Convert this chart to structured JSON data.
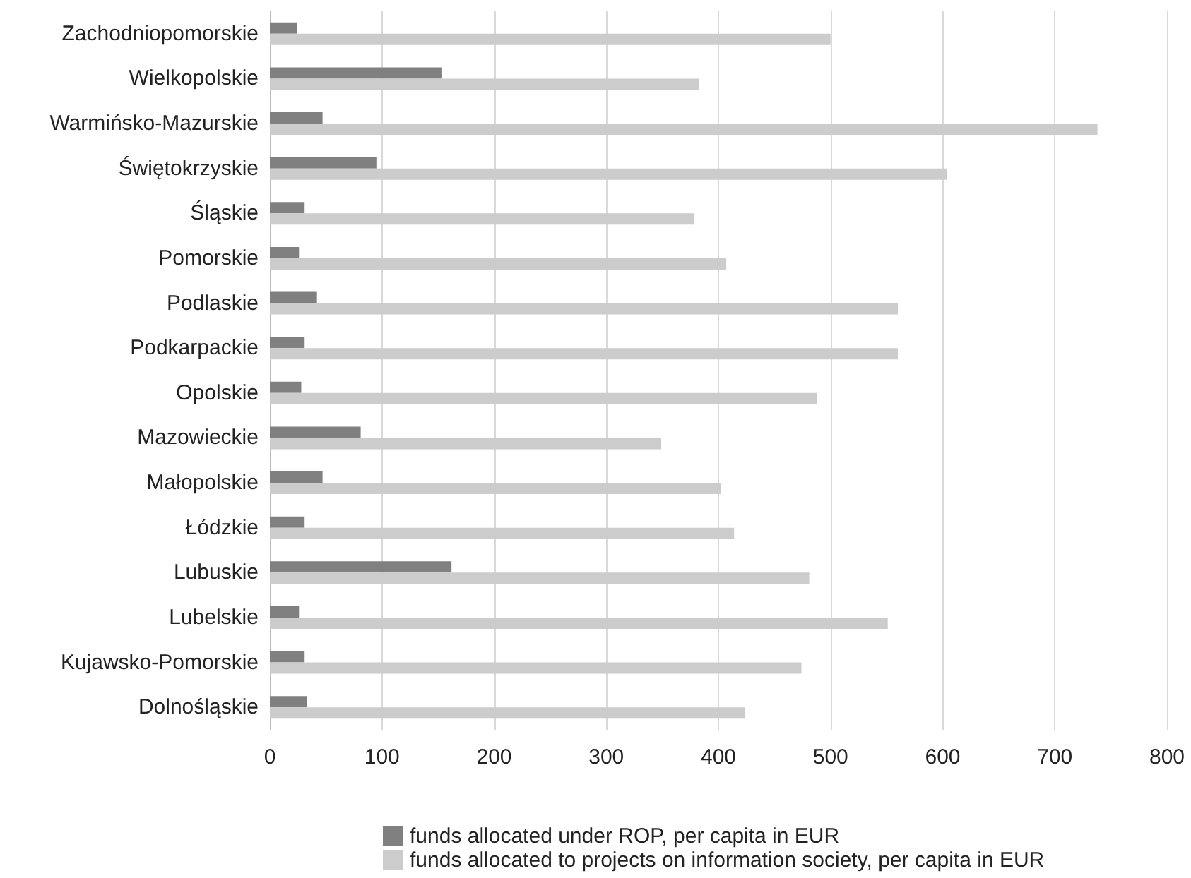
{
  "chart_data": {
    "type": "bar",
    "orientation": "horizontal",
    "categories": [
      "Zachodniopomorskie",
      "Wielkopolskie",
      "Warmińsko-Mazurskie",
      "Świętokrzyskie",
      "Śląskie",
      "Pomorskie",
      "Podlaskie",
      "Podkarpackie",
      "Opolskie",
      "Mazowieckie",
      "Małopolskie",
      "Łódzkie",
      "Lubuskie",
      "Lubelskie",
      "Kujawsko-Pomorskie",
      "Dolnośląskie"
    ],
    "series": [
      {
        "name": "funds allocated under ROP, per capita in EUR",
        "color": "#808080",
        "values": [
          24,
          153,
          47,
          95,
          31,
          26,
          42,
          31,
          28,
          81,
          47,
          31,
          162,
          26,
          31,
          33
        ]
      },
      {
        "name": "funds allocated to projects on information society, per capita in EUR",
        "color": "#cccccc",
        "values": [
          500,
          383,
          738,
          604,
          378,
          407,
          560,
          560,
          488,
          349,
          402,
          414,
          481,
          551,
          474,
          424
        ]
      }
    ],
    "xlim": [
      0,
      800
    ],
    "xticks": [
      0,
      100,
      200,
      300,
      400,
      500,
      600,
      700,
      800
    ],
    "grid": "x",
    "legend": "bottom"
  }
}
